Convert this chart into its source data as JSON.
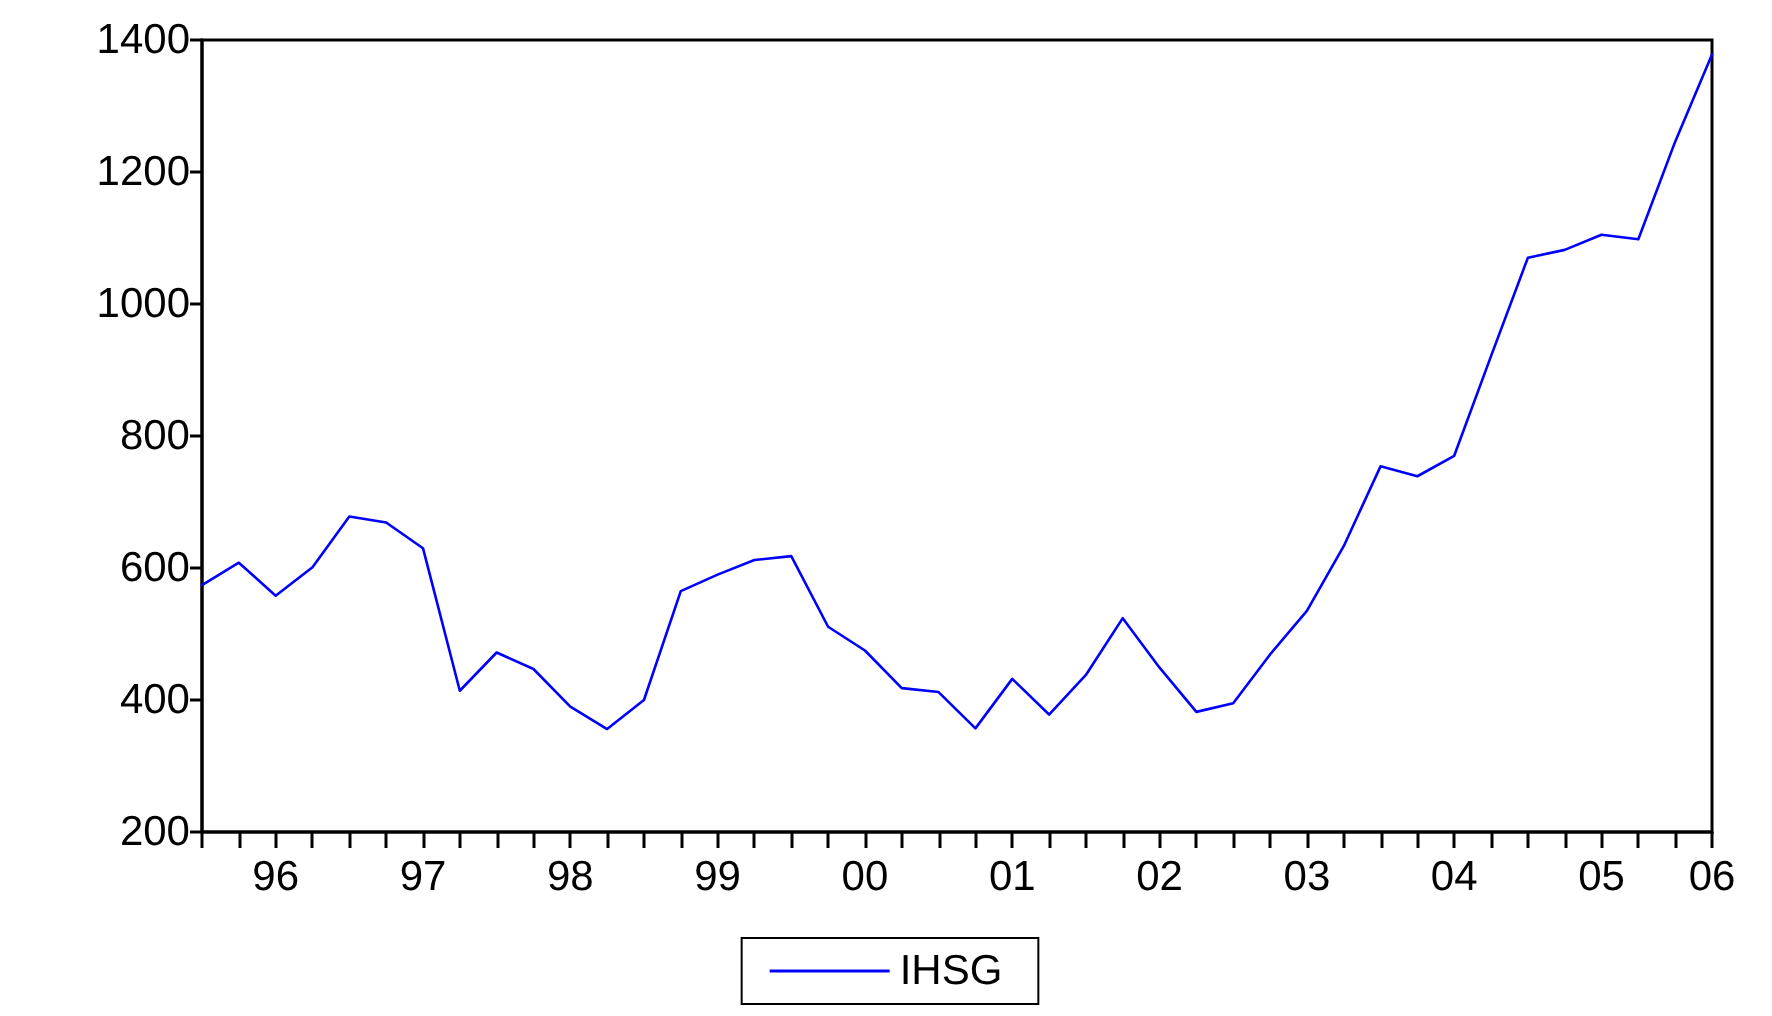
{
  "chart_data": {
    "type": "line",
    "categories": [
      null,
      null,
      "96",
      null,
      null,
      null,
      "97",
      null,
      null,
      null,
      "98",
      null,
      null,
      null,
      "99",
      null,
      null,
      null,
      "00",
      null,
      null,
      null,
      "01",
      null,
      null,
      null,
      "02",
      null,
      null,
      null,
      "03",
      null,
      null,
      null,
      "04",
      null,
      null,
      null,
      "05",
      null,
      null,
      "06"
    ],
    "series": [
      {
        "name": "IHSG",
        "color": "#0000ff",
        "values": [
          574,
          608,
          558,
          601,
          678,
          669,
          630,
          414,
          472,
          447,
          390,
          356,
          400,
          565,
          590,
          612,
          618,
          511,
          475,
          418,
          412,
          357,
          432,
          378,
          438,
          524,
          449,
          382,
          395,
          469,
          535,
          633,
          754,
          739,
          770,
          921,
          1070,
          1082,
          1105,
          1098,
          1246,
          1378
        ]
      }
    ],
    "ylim": [
      200,
      1400
    ],
    "yticks": [
      200,
      400,
      600,
      800,
      1000,
      1200,
      1400
    ],
    "grid": false,
    "legend": "bottom",
    "marker": "none",
    "line_style": "solid"
  }
}
